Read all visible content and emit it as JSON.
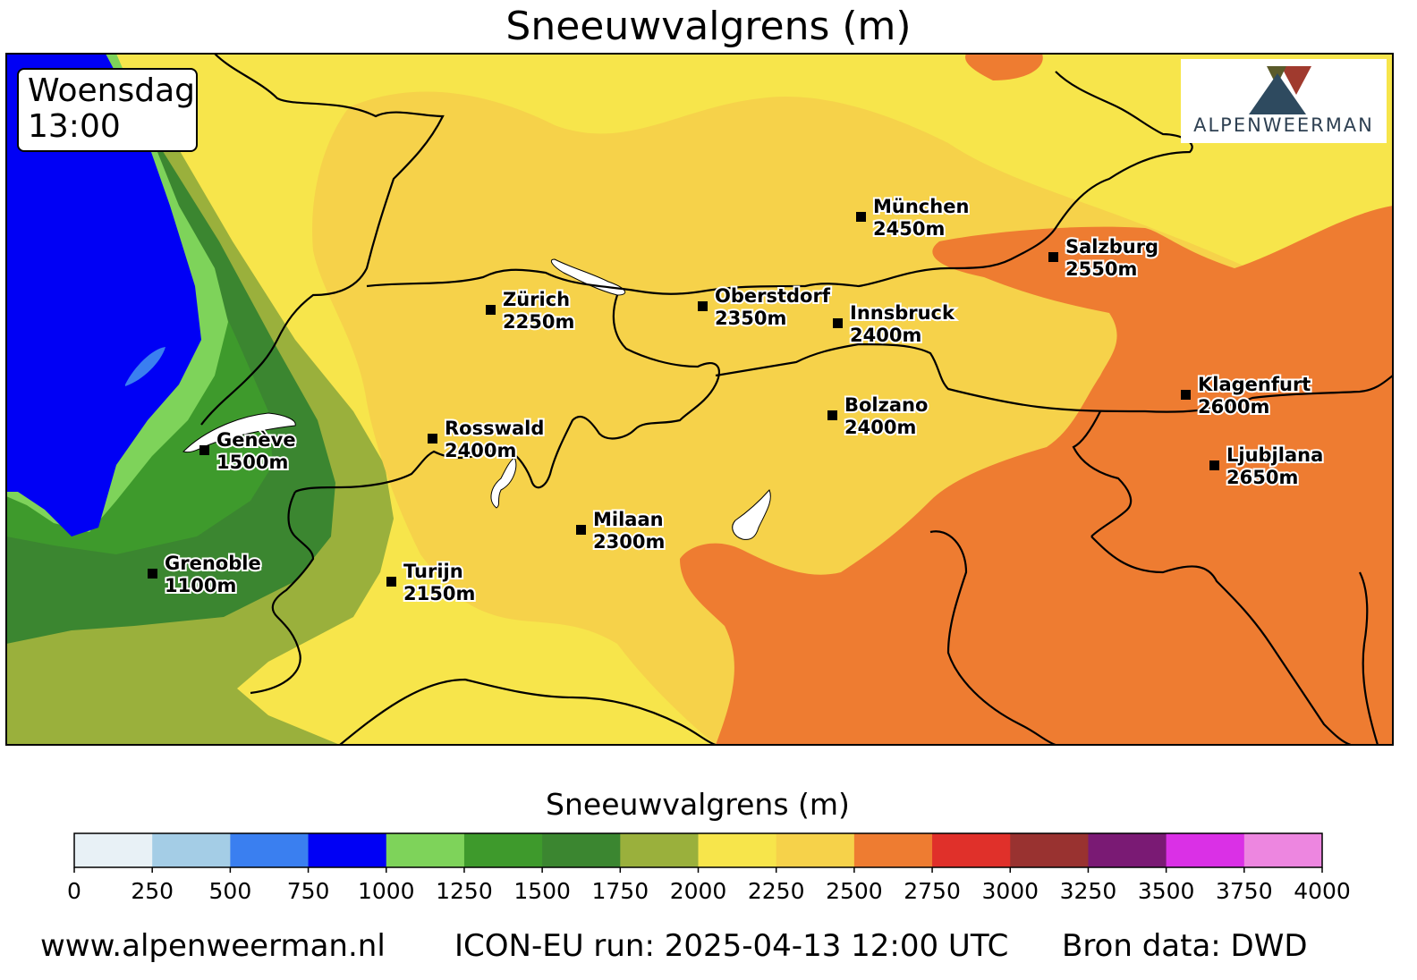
{
  "title": "Sneeuwvalgrens (m)",
  "timestamp": {
    "day": "Woensdag",
    "time": "13:00"
  },
  "logo": {
    "text": "ALPENWEERMAN",
    "colors": [
      "#2e4a5f",
      "#5a5a2a",
      "#a03a2e"
    ]
  },
  "cities": [
    {
      "name": "München",
      "value": "2450m"
    },
    {
      "name": "Salzburg",
      "value": "2550m"
    },
    {
      "name": "Zürich",
      "value": "2250m"
    },
    {
      "name": "Oberstdorf",
      "value": "2350m"
    },
    {
      "name": "Innsbruck",
      "value": "2400m"
    },
    {
      "name": "Klagenfurt",
      "value": "2600m"
    },
    {
      "name": "Bolzano",
      "value": "2400m"
    },
    {
      "name": "Rosswald",
      "value": "2400m"
    },
    {
      "name": "Genève",
      "value": "1500m"
    },
    {
      "name": "Ljubjlana",
      "value": "2650m"
    },
    {
      "name": "Milaan",
      "value": "2300m"
    },
    {
      "name": "Grenoble",
      "value": "1100m"
    },
    {
      "name": "Turijn",
      "value": "2150m"
    }
  ],
  "colorbar": {
    "title": "Sneeuwvalgrens (m)",
    "ticks": [
      "0",
      "250",
      "500",
      "750",
      "1000",
      "1250",
      "1500",
      "1750",
      "2000",
      "2250",
      "2500",
      "2750",
      "3000",
      "3250",
      "3500",
      "3750",
      "4000"
    ],
    "colors": [
      "#e8f1f6",
      "#a4cde6",
      "#3a7ff0",
      "#0000f5",
      "#7ed35a",
      "#3e9a2c",
      "#3b8630",
      "#9ab03c",
      "#f7e54b",
      "#f6d24a",
      "#ee7c31",
      "#e0302a",
      "#993230",
      "#7a1a74",
      "#da30e6",
      "#ed86e0"
    ]
  },
  "footer": {
    "website": "www.alpenweerman.nl",
    "run": "ICON-EU run: 2025-04-13 12:00 UTC",
    "source": "Bron data: DWD"
  }
}
